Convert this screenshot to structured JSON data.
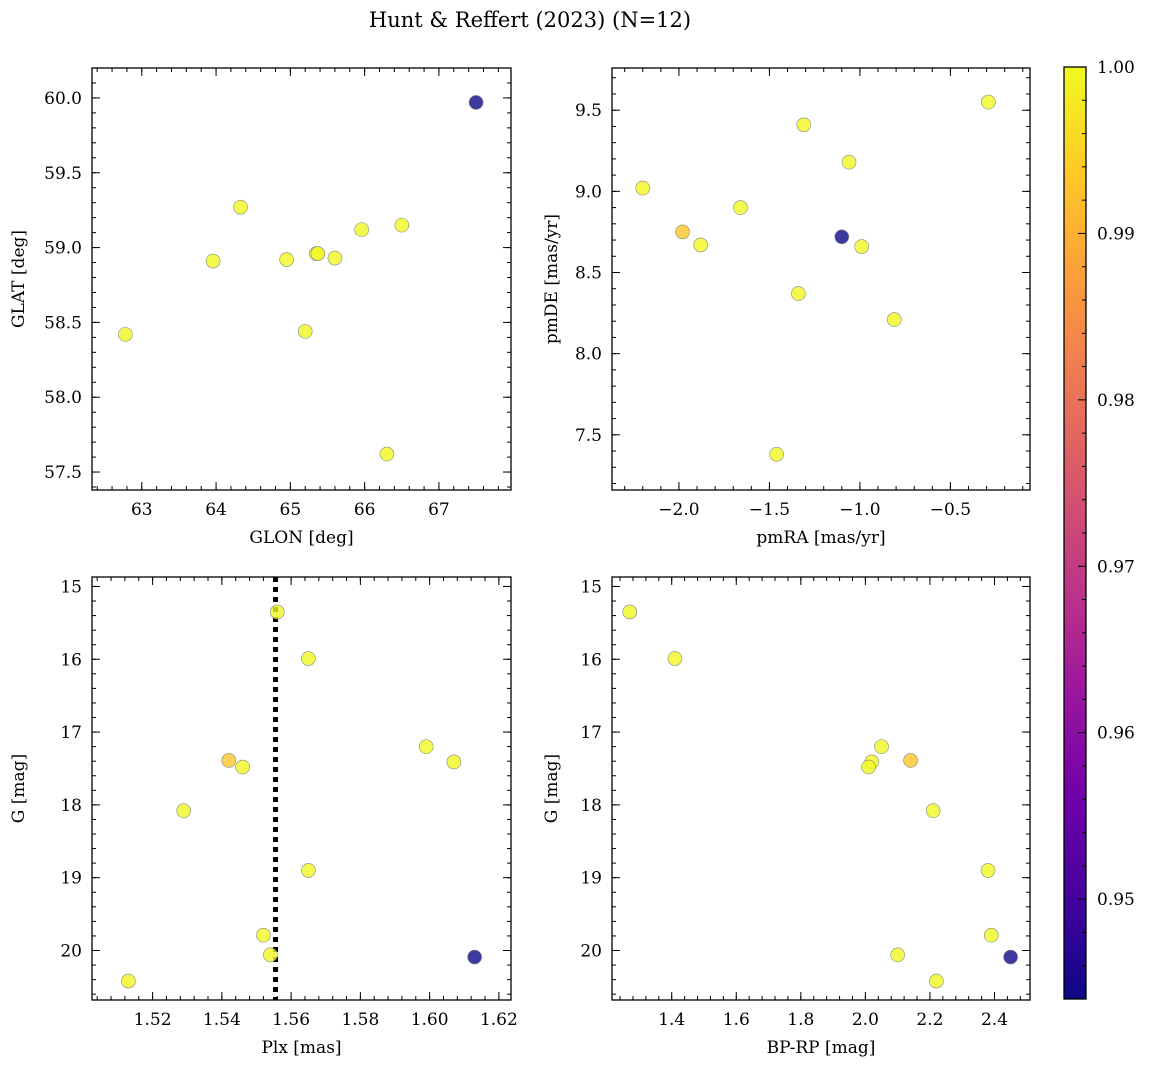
{
  "figure_title": "Hunt & Reffert (2023) (N=12)",
  "colors": {
    "cmap_stops": [
      "#0d0887",
      "#46039f",
      "#7201a8",
      "#9c179e",
      "#bd3786",
      "#d8576b",
      "#ed7953",
      "#fb9f3a",
      "#fdca26",
      "#f0f921"
    ],
    "marker_alpha": 0.8,
    "marker_edge": "#888888",
    "reference_line": "#000000"
  },
  "colorbar": {
    "vmin": 0.944,
    "vmax": 1.0,
    "ticks": [
      0.95,
      0.96,
      0.97,
      0.98,
      0.99,
      1.0
    ],
    "tick_labels": [
      "0.95",
      "0.96",
      "0.97",
      "0.98",
      "0.99",
      "1.00"
    ]
  },
  "chart_data": [
    {
      "type": "scatter",
      "title": "",
      "xlabel": "GLON [deg]",
      "ylabel": "GLAT [deg]",
      "xlim": [
        62.33,
        67.97
      ],
      "ylim": [
        57.38,
        60.2
      ],
      "y_inverted": false,
      "xticks": [
        63,
        64,
        65,
        66,
        67
      ],
      "xtick_labels": [
        "63",
        "64",
        "65",
        "66",
        "67"
      ],
      "x_minor_step": 0.2,
      "yticks": [
        57.5,
        58.0,
        58.5,
        59.0,
        59.5,
        60.0
      ],
      "ytick_labels": [
        "57.5",
        "58.0",
        "58.5",
        "59.0",
        "59.5",
        "60.0"
      ],
      "y_minor_step": 0.1,
      "x": [
        62.78,
        63.96,
        64.33,
        64.95,
        65.2,
        65.35,
        65.37,
        65.6,
        65.96,
        66.3,
        66.5,
        67.5
      ],
      "y": [
        58.42,
        58.91,
        59.27,
        58.92,
        58.44,
        58.96,
        58.96,
        58.93,
        59.12,
        57.62,
        59.15,
        59.97
      ],
      "prob": [
        1.0,
        1.0,
        1.0,
        1.0,
        1.0,
        1.0,
        1.0,
        1.0,
        1.0,
        1.0,
        1.0,
        0.944
      ]
    },
    {
      "type": "scatter",
      "title": "",
      "xlabel": "pmRA [mas/yr]",
      "ylabel": "pmDE [mas/yr]",
      "xlim": [
        -2.37,
        -0.06
      ],
      "ylim": [
        7.16,
        9.76
      ],
      "y_inverted": false,
      "xticks": [
        -2.0,
        -1.5,
        -1.0,
        -0.5
      ],
      "xtick_labels": [
        "−2.0",
        "−1.5",
        "−1.0",
        "−0.5"
      ],
      "x_minor_step": 0.1,
      "yticks": [
        7.5,
        8.0,
        8.5,
        9.0,
        9.5
      ],
      "ytick_labels": [
        "7.5",
        "8.0",
        "8.5",
        "9.0",
        "9.5"
      ],
      "y_minor_step": 0.1,
      "x": [
        -2.2,
        -1.98,
        -1.88,
        -1.66,
        -1.46,
        -1.34,
        -1.31,
        -1.06,
        -0.99,
        -0.81,
        -0.29,
        -1.1
      ],
      "y": [
        9.02,
        8.75,
        8.67,
        8.9,
        7.38,
        8.37,
        9.41,
        9.18,
        8.66,
        8.21,
        9.55,
        8.72
      ],
      "prob": [
        1.0,
        0.993,
        1.0,
        1.0,
        1.0,
        1.0,
        1.0,
        1.0,
        1.0,
        1.0,
        1.0,
        0.944
      ]
    },
    {
      "type": "scatter",
      "title": "",
      "xlabel": "Plx [mas]",
      "ylabel": "G [mag]",
      "xlim": [
        1.5025,
        1.6235
      ],
      "ylim": [
        20.68,
        14.87
      ],
      "y_inverted": true,
      "xticks": [
        1.52,
        1.54,
        1.56,
        1.58,
        1.6,
        1.62
      ],
      "xtick_labels": [
        "1.52",
        "1.54",
        "1.56",
        "1.58",
        "1.60",
        "1.62"
      ],
      "x_minor_step": 0.004,
      "yticks": [
        15,
        16,
        17,
        18,
        19,
        20
      ],
      "ytick_labels": [
        "15",
        "16",
        "17",
        "18",
        "19",
        "20"
      ],
      "y_minor_step": 0.2,
      "x": [
        1.556,
        1.565,
        1.599,
        1.607,
        1.542,
        1.546,
        1.529,
        1.565,
        1.552,
        1.554,
        1.513,
        1.613
      ],
      "y": [
        15.35,
        15.99,
        17.2,
        17.41,
        17.39,
        17.48,
        18.08,
        18.9,
        19.79,
        20.06,
        20.42,
        20.09
      ],
      "prob": [
        1.0,
        1.0,
        1.0,
        1.0,
        0.993,
        1.0,
        1.0,
        1.0,
        1.0,
        1.0,
        1.0,
        0.944
      ],
      "reference_line_x": 1.5555
    },
    {
      "type": "scatter",
      "title": "",
      "xlabel": "BP-RP [mag]",
      "ylabel": "G [mag]",
      "xlim": [
        1.215,
        2.51
      ],
      "ylim": [
        20.68,
        14.87
      ],
      "y_inverted": true,
      "xticks": [
        1.4,
        1.6,
        1.8,
        2.0,
        2.2,
        2.4
      ],
      "xtick_labels": [
        "1.4",
        "1.6",
        "1.8",
        "2.0",
        "2.2",
        "2.4"
      ],
      "x_minor_step": 0.04,
      "yticks": [
        15,
        16,
        17,
        18,
        19,
        20
      ],
      "ytick_labels": [
        "15",
        "16",
        "17",
        "18",
        "19",
        "20"
      ],
      "y_minor_step": 0.2,
      "x": [
        1.27,
        1.41,
        2.05,
        2.02,
        2.14,
        2.01,
        2.21,
        2.38,
        2.39,
        2.1,
        2.22,
        2.45
      ],
      "y": [
        15.35,
        15.99,
        17.2,
        17.41,
        17.39,
        17.48,
        18.08,
        18.9,
        19.79,
        20.06,
        20.42,
        20.09
      ],
      "prob": [
        1.0,
        1.0,
        1.0,
        1.0,
        0.993,
        1.0,
        1.0,
        1.0,
        1.0,
        1.0,
        1.0,
        0.944
      ]
    }
  ]
}
